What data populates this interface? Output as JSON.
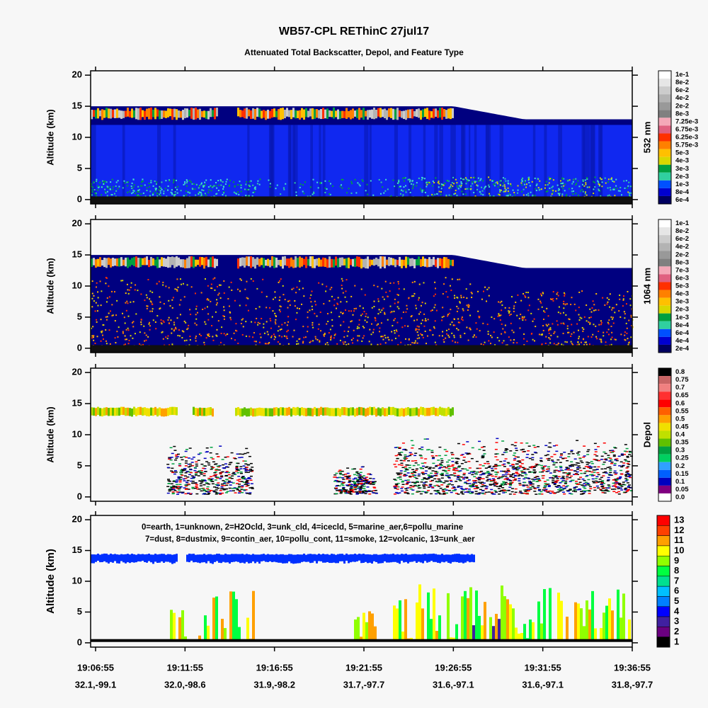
{
  "header": {
    "title": "WB57-CPL REThinC 27jul17",
    "subtitle": "Attenuated Total Backscatter, Depol, and Feature Type"
  },
  "x_axis": {
    "times": [
      "19:06:55",
      "19:11:55",
      "19:16:55",
      "19:21:55",
      "19:26:55",
      "19:31:55",
      "19:36:55"
    ],
    "locations": [
      "32.1,-99.1",
      "32.0,-98.6",
      "31.9,-98.2",
      "31.7,-97.7",
      "31.6,-97.1",
      "31.6,-97.1",
      "31.8,-97.7"
    ]
  },
  "chart_data": [
    {
      "type": "heatmap",
      "ylabel": "Altitude (km)",
      "ylim": [
        -0.7,
        20.7
      ],
      "yticks": [
        0,
        5,
        10,
        15,
        20
      ],
      "colorbar_title": "532 nm",
      "colorbar": {
        "labels": [
          "1e-1",
          "8e-2",
          "6e-2",
          "4e-2",
          "2e-2",
          "8e-3",
          "7.25e-3",
          "6.75e-3",
          "6.25e-3",
          "5.75e-3",
          "5e-3",
          "4e-3",
          "3e-3",
          "2e-3",
          "1e-3",
          "8e-4",
          "6e-4"
        ],
        "colors": [
          "#ffffff",
          "#e6e6e6",
          "#cccccc",
          "#b3b3b3",
          "#999999",
          "#808080",
          "#f4a8b8",
          "#e06080",
          "#ff3000",
          "#ff8000",
          "#ffc000",
          "#d8d800",
          "#00a040",
          "#30d0a0",
          "#0050ff",
          "#0000d0",
          "#000060"
        ]
      }
    },
    {
      "type": "heatmap",
      "ylabel": "Altitude (km)",
      "ylim": [
        -0.7,
        20.7
      ],
      "yticks": [
        0,
        5,
        10,
        15,
        20
      ],
      "colorbar_title": "1064 nm",
      "colorbar": {
        "labels": [
          "1e-1",
          "8e-2",
          "6e-2",
          "4e-2",
          "2e-2",
          "8e-3",
          "7e-3",
          "6e-3",
          "5e-3",
          "4e-3",
          "3e-3",
          "2e-3",
          "1e-3",
          "8e-4",
          "6e-4",
          "4e-4",
          "2e-4"
        ],
        "colors": [
          "#ffffff",
          "#e6e6e6",
          "#cccccc",
          "#b3b3b3",
          "#999999",
          "#808080",
          "#f4a8b8",
          "#e06080",
          "#ff3000",
          "#ff8000",
          "#ffc000",
          "#d8d800",
          "#00a040",
          "#30d0a0",
          "#0050ff",
          "#0000d0",
          "#000060"
        ]
      }
    },
    {
      "type": "heatmap",
      "ylabel": "Altitude (km)",
      "ylim": [
        -0.7,
        20.7
      ],
      "yticks": [
        0,
        5,
        10,
        15,
        20
      ],
      "colorbar_title": "Depol",
      "colorbar": {
        "labels": [
          "0.8",
          "0.75",
          "0.7",
          "0.65",
          "0.6",
          "0.55",
          "0.5",
          "0.45",
          "0.4",
          "0.35",
          "0.3",
          "0.25",
          "0.2",
          "0.15",
          "0.1",
          "0.05",
          "0.0"
        ],
        "colors": [
          "#000000",
          "#c86464",
          "#f08080",
          "#ff3030",
          "#ff0000",
          "#ff6000",
          "#ffa000",
          "#f0e000",
          "#c0e000",
          "#60c000",
          "#00a040",
          "#00d060",
          "#30a0ff",
          "#0060ff",
          "#0000c0",
          "#800080",
          "#ffffff"
        ]
      }
    },
    {
      "type": "heatmap",
      "ylabel": "Altitude (km)",
      "ylim": [
        -0.7,
        20.7
      ],
      "yticks": [
        0,
        5,
        10,
        15,
        20
      ],
      "legend_lines": [
        "0=earth, 1=unknown, 2=H2Ocld, 3=unk_cld, 4=icecld, 5=marine_aer,6=pollu_marine",
        "7=dust, 8=dustmix, 9=contin_aer, 10=pollu_cont, 11=smoke, 12=volcanic, 13=unk_aer"
      ],
      "colorbar": {
        "labels": [
          13,
          12,
          11,
          10,
          9,
          8,
          7,
          6,
          5,
          4,
          3,
          2,
          1
        ],
        "colors": [
          "#ff0000",
          "#ff4000",
          "#ffa000",
          "#ffff00",
          "#90ff00",
          "#00ff40",
          "#00e090",
          "#00c0ff",
          "#0080ff",
          "#0000ff",
          "#4020a0",
          "#6a0080",
          "#000000"
        ]
      }
    }
  ]
}
